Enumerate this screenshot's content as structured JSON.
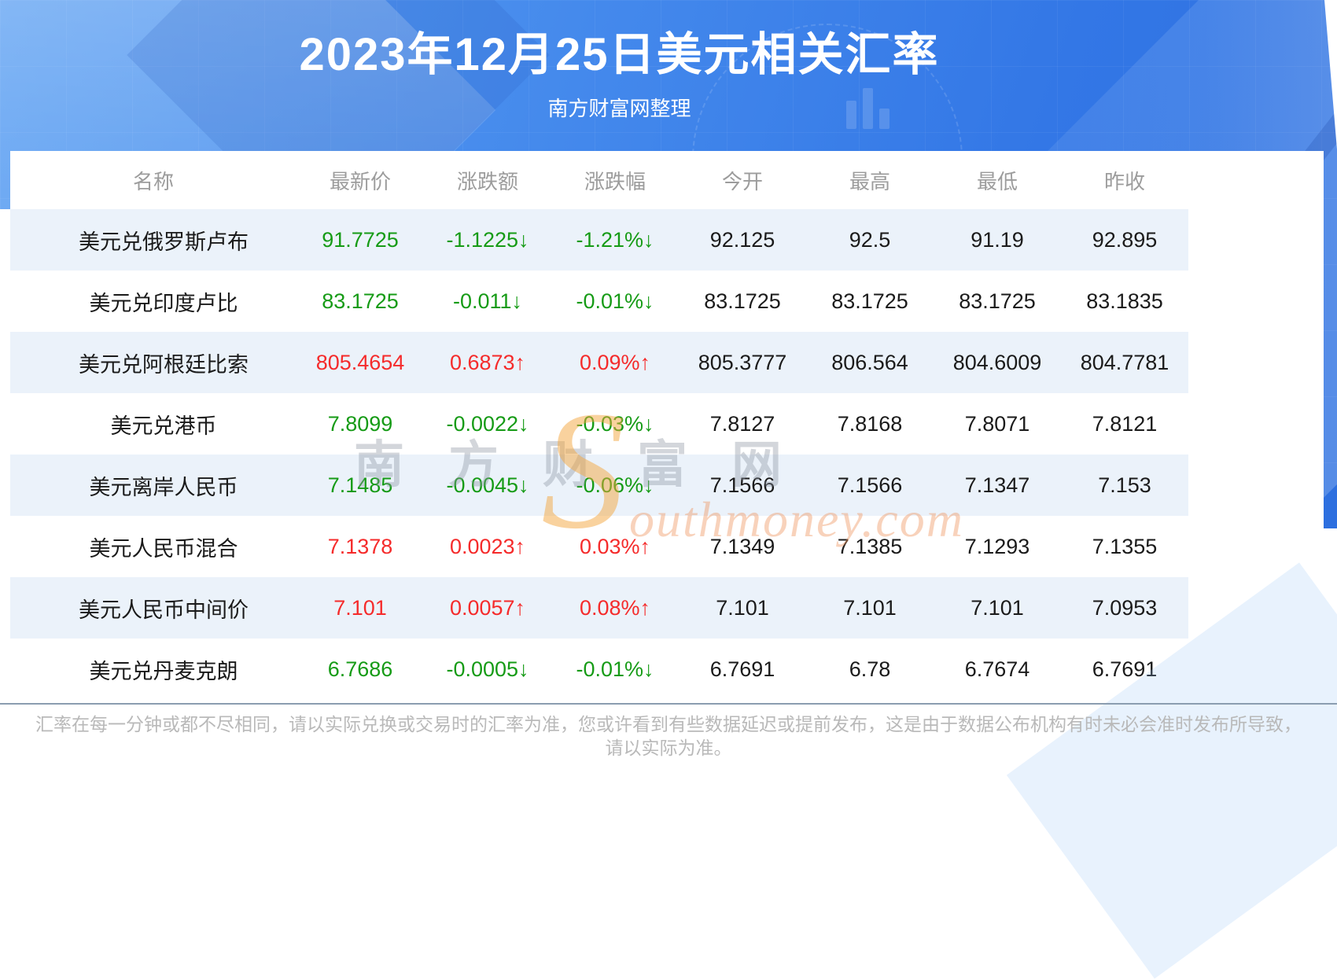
{
  "header": {
    "title": "2023年12月25日美元相关汇率",
    "subtitle": "南方财富网整理"
  },
  "table": {
    "columns": [
      "名称",
      "最新价",
      "涨跌额",
      "涨跌幅",
      "今开",
      "最高",
      "最低",
      "昨收"
    ],
    "rows": [
      {
        "name": "美元兑俄罗斯卢布",
        "latest": "91.7725",
        "change": "-1.1225↓",
        "change_pct": "-1.21%↓",
        "open": "92.125",
        "high": "92.5",
        "low": "91.19",
        "prev_close": "92.895",
        "trend": "down"
      },
      {
        "name": "美元兑印度卢比",
        "latest": "83.1725",
        "change": "-0.011↓",
        "change_pct": "-0.01%↓",
        "open": "83.1725",
        "high": "83.1725",
        "low": "83.1725",
        "prev_close": "83.1835",
        "trend": "down"
      },
      {
        "name": "美元兑阿根廷比索",
        "latest": "805.4654",
        "change": "0.6873↑",
        "change_pct": "0.09%↑",
        "open": "805.3777",
        "high": "806.564",
        "low": "804.6009",
        "prev_close": "804.7781",
        "trend": "up"
      },
      {
        "name": "美元兑港币",
        "latest": "7.8099",
        "change": "-0.0022↓",
        "change_pct": "-0.03%↓",
        "open": "7.8127",
        "high": "7.8168",
        "low": "7.8071",
        "prev_close": "7.8121",
        "trend": "down"
      },
      {
        "name": "美元离岸人民币",
        "latest": "7.1485",
        "change": "-0.0045↓",
        "change_pct": "-0.06%↓",
        "open": "7.1566",
        "high": "7.1566",
        "low": "7.1347",
        "prev_close": "7.153",
        "trend": "down"
      },
      {
        "name": "美元人民币混合",
        "latest": "7.1378",
        "change": "0.0023↑",
        "change_pct": "0.03%↑",
        "open": "7.1349",
        "high": "7.1385",
        "low": "7.1293",
        "prev_close": "7.1355",
        "trend": "up"
      },
      {
        "name": "美元人民币中间价",
        "latest": "7.101",
        "change": "0.0057↑",
        "change_pct": "0.08%↑",
        "open": "7.101",
        "high": "7.101",
        "low": "7.101",
        "prev_close": "7.0953",
        "trend": "up"
      },
      {
        "name": "美元兑丹麦克朗",
        "latest": "6.7686",
        "change": "-0.0005↓",
        "change_pct": "-0.01%↓",
        "open": "6.7691",
        "high": "6.78",
        "low": "6.7674",
        "prev_close": "6.7691",
        "trend": "down"
      }
    ]
  },
  "watermark": {
    "cn": "南方财富网",
    "en_initial": "S",
    "en_rest": "outhmoney.com"
  },
  "footer": {
    "line1": "汇率在每一分钟或都不尽相同，请以实际兑换或交易时的汇率为准，您或许看到有些数据延迟或提前发布，这是由于数据公布机构有时未必会准时发布所导致，",
    "line2": "请以实际为准。"
  },
  "colors": {
    "up_red": "#f52b2b",
    "down_green": "#169b16",
    "hero_blue_start": "#5ea1f2",
    "hero_blue_end": "#2d6fdf",
    "alt_row_blue": "#ebf2fa",
    "divider_gray": "#8b9db0"
  }
}
